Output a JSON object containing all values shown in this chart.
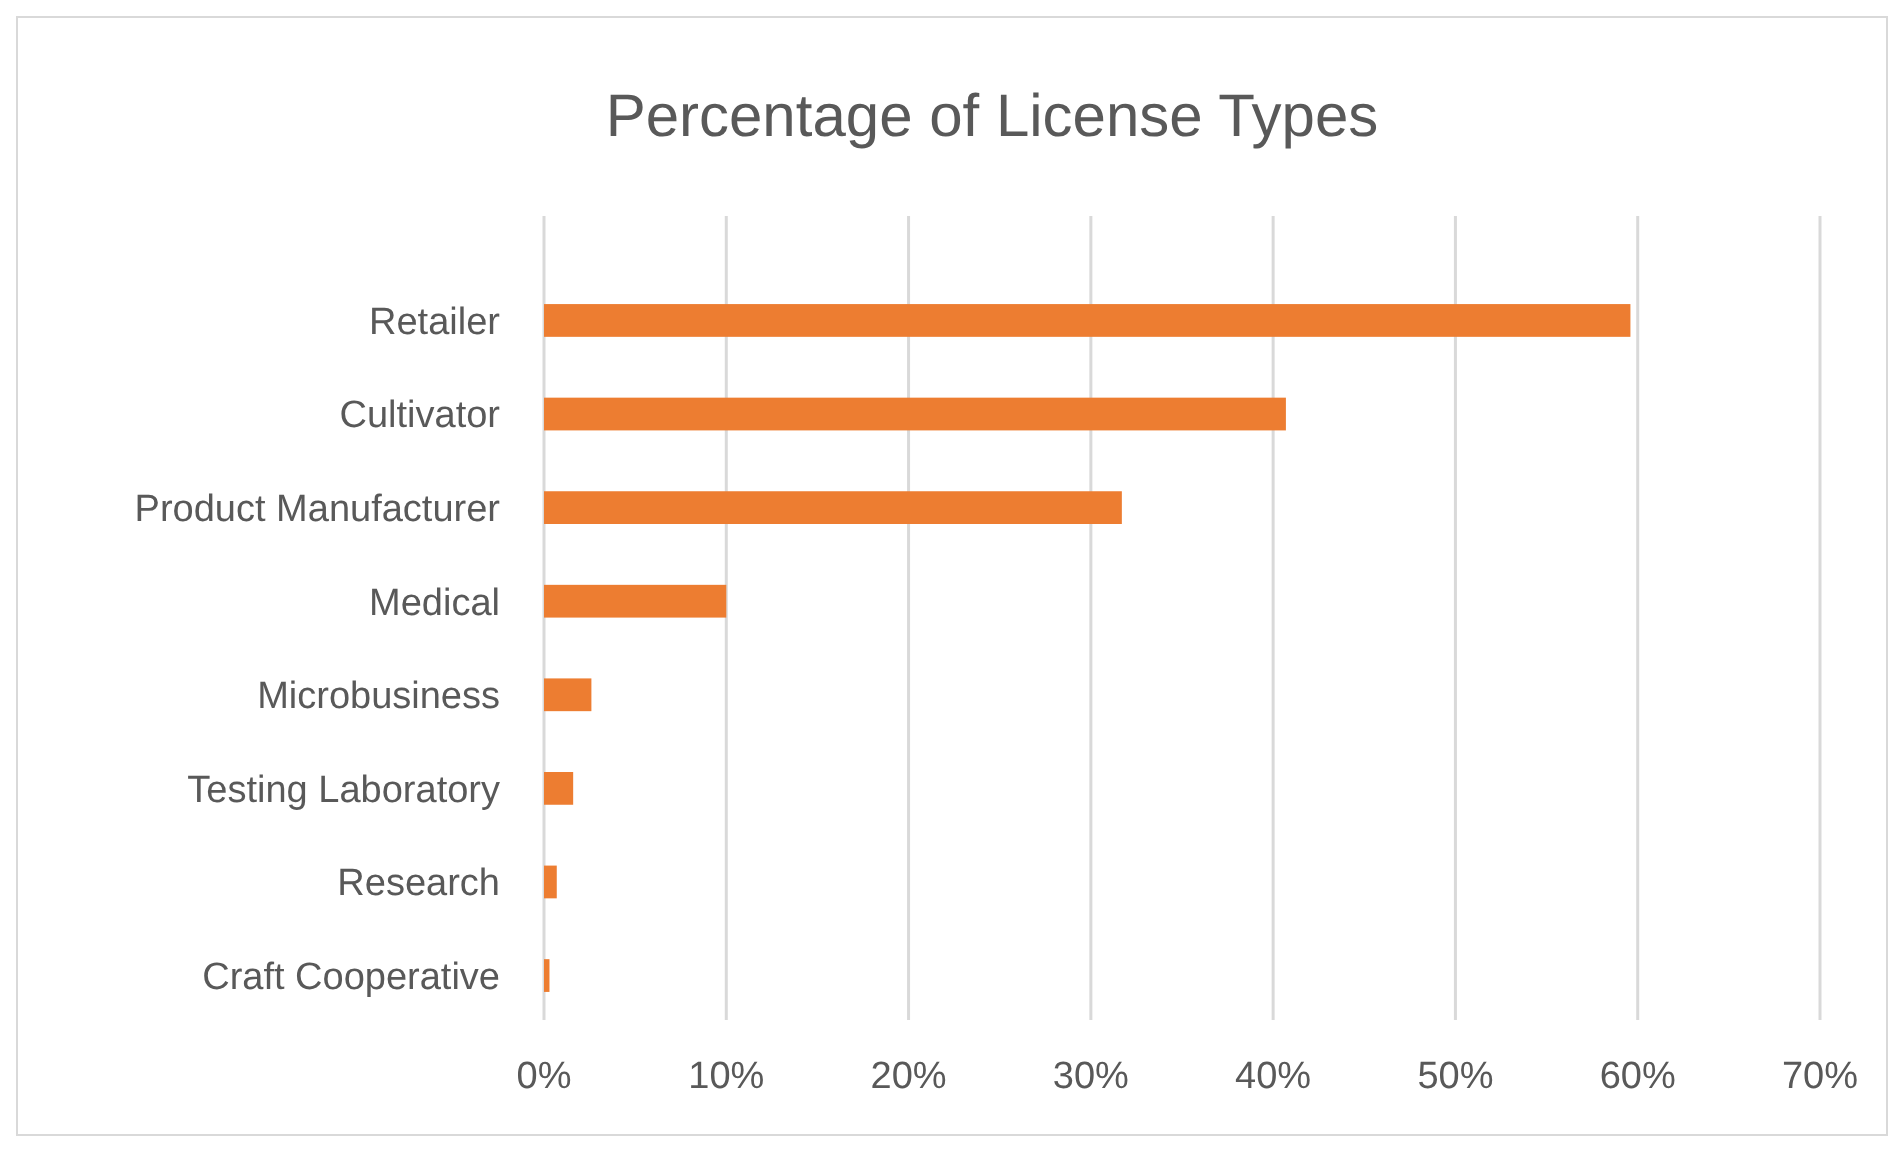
{
  "chart_data": {
    "type": "bar",
    "orientation": "horizontal",
    "title": "Percentage of License Types",
    "categories": [
      "Retailer",
      "Cultivator",
      "Product Manufacturer",
      "Medical",
      "Microbusiness",
      "Testing Laboratory",
      "Research",
      "Craft Cooperative"
    ],
    "values": [
      59.6,
      40.7,
      31.7,
      10,
      2.6,
      1.6,
      0.7,
      0.3
    ],
    "color": "#ed7d31",
    "xlim": [
      0,
      70
    ],
    "xticks": [
      {
        "value": 0,
        "label": "0%"
      },
      {
        "value": 10,
        "label": "10%"
      },
      {
        "value": 20,
        "label": "20%"
      },
      {
        "value": 30,
        "label": "30%"
      },
      {
        "value": 40,
        "label": "40%"
      },
      {
        "value": 50,
        "label": "50%"
      },
      {
        "value": 60,
        "label": "60%"
      },
      {
        "value": 70,
        "label": "70%"
      }
    ],
    "grid": "x"
  }
}
